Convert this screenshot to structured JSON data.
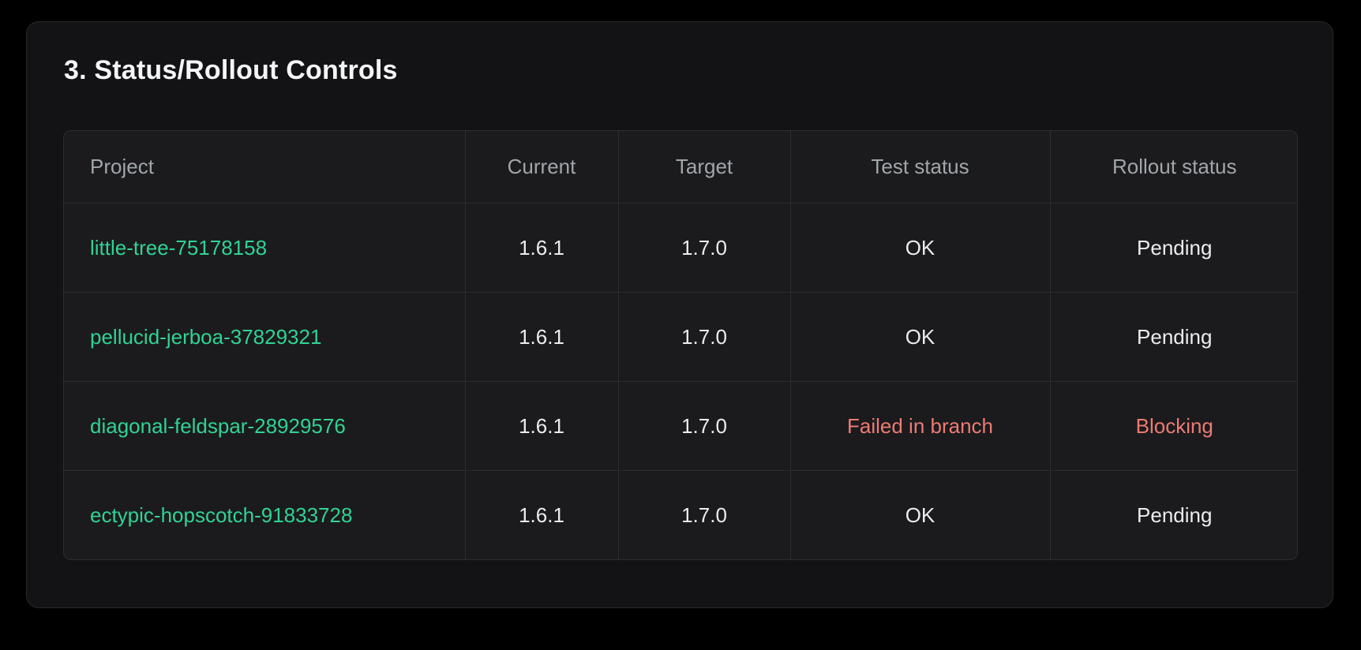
{
  "section": {
    "title": "3. Status/Rollout Controls"
  },
  "table": {
    "columns": [
      {
        "label": "Project"
      },
      {
        "label": "Current"
      },
      {
        "label": "Target"
      },
      {
        "label": "Test status"
      },
      {
        "label": "Rollout status"
      }
    ],
    "rows": [
      {
        "project": "little-tree-75178158",
        "current": "1.6.1",
        "target": "1.7.0",
        "test_status": "OK",
        "test_state": "ok",
        "rollout_status": "Pending",
        "rollout_state": "pending"
      },
      {
        "project": "pellucid-jerboa-37829321",
        "current": "1.6.1",
        "target": "1.7.0",
        "test_status": "OK",
        "test_state": "ok",
        "rollout_status": "Pending",
        "rollout_state": "pending"
      },
      {
        "project": "diagonal-feldspar-28929576",
        "current": "1.6.1",
        "target": "1.7.0",
        "test_status": "Failed in branch",
        "test_state": "failed",
        "rollout_status": "Blocking",
        "rollout_state": "blocking"
      },
      {
        "project": "ectypic-hopscotch-91833728",
        "current": "1.6.1",
        "target": "1.7.0",
        "test_status": "OK",
        "test_state": "ok",
        "rollout_status": "Pending",
        "rollout_state": "pending"
      }
    ]
  },
  "colors": {
    "project_link": "#30d394",
    "error_text": "#ee7a74"
  }
}
